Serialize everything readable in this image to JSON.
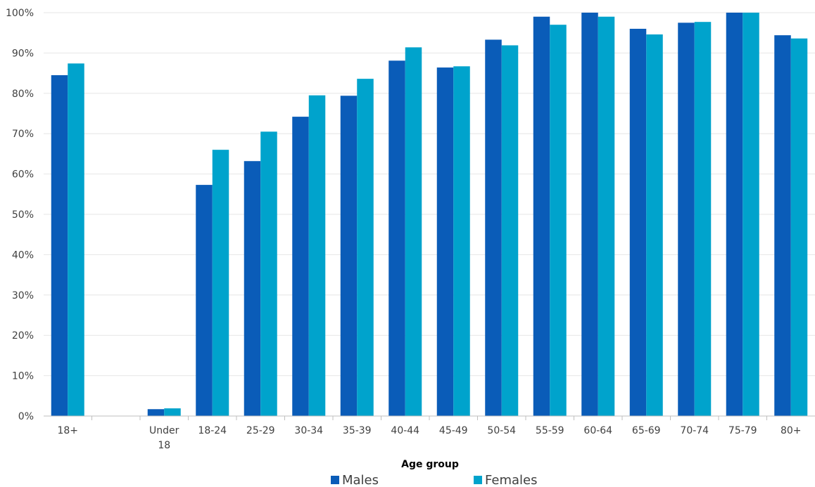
{
  "chart_data": {
    "type": "bar",
    "title": "",
    "xlabel": "Age group",
    "ylabel": "",
    "ylim": [
      0,
      100
    ],
    "y_ticks": [
      "0%",
      "10%",
      "20%",
      "30%",
      "40%",
      "50%",
      "60%",
      "70%",
      "80%",
      "90%",
      "100%"
    ],
    "grid": true,
    "legend_position": "bottom",
    "categories": [
      [
        "18+"
      ],
      [
        ""
      ],
      [
        "Under",
        "18"
      ],
      [
        "18-24"
      ],
      [
        "25-29"
      ],
      [
        "30-34"
      ],
      [
        "35-39"
      ],
      [
        "40-44"
      ],
      [
        "45-49"
      ],
      [
        "50-54"
      ],
      [
        "55-59"
      ],
      [
        "60-64"
      ],
      [
        "65-69"
      ],
      [
        "70-74"
      ],
      [
        "75-79"
      ],
      [
        "80+"
      ]
    ],
    "series": [
      {
        "name": "Males",
        "color": "#0A5CB8",
        "values": [
          84.5,
          null,
          1.7,
          57.3,
          63.2,
          74.2,
          79.4,
          88.1,
          86.4,
          93.3,
          99.0,
          100.0,
          96.0,
          97.5,
          100.0,
          94.4
        ]
      },
      {
        "name": "Females",
        "color": "#00A3CC",
        "values": [
          87.4,
          null,
          1.9,
          66.0,
          70.5,
          79.5,
          83.6,
          91.4,
          86.7,
          91.9,
          97.0,
          99.0,
          94.6,
          97.7,
          100.0,
          93.6
        ]
      }
    ]
  }
}
